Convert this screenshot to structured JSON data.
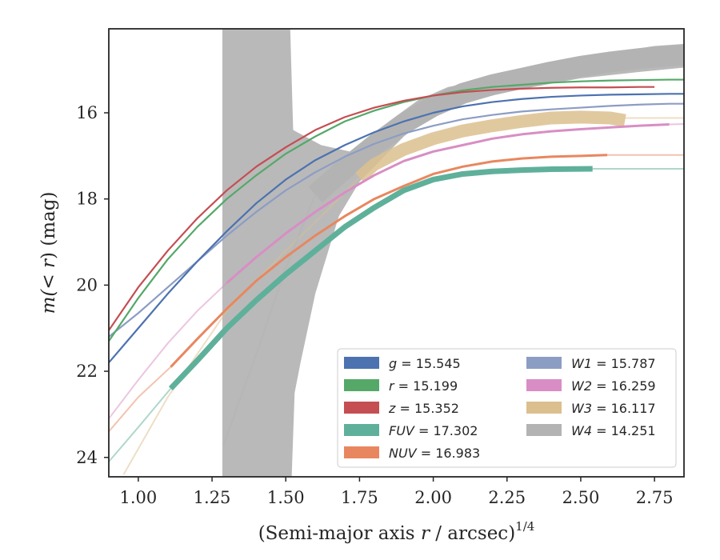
{
  "chart_data": {
    "type": "line",
    "xlabel_main": "(Semi-major axis ",
    "xlabel_var": "r",
    "xlabel_rest": " / arcsec)",
    "xlabel_sup": "1/4",
    "ylabel_main": "m(",
    "ylabel_var": "< r",
    "ylabel_rest": ") (mag)",
    "xlim": [
      0.9,
      2.85
    ],
    "ylim": [
      24.45,
      14.05
    ],
    "y_inverted": true,
    "xticks": [
      1.0,
      1.25,
      1.5,
      1.75,
      2.0,
      2.25,
      2.5,
      2.75
    ],
    "xtick_labels": [
      "1.00",
      "1.25",
      "1.50",
      "1.75",
      "2.00",
      "2.25",
      "2.50",
      "2.75"
    ],
    "yticks": [
      16,
      18,
      20,
      22,
      24
    ],
    "ytick_labels": [
      "16",
      "18",
      "20",
      "22",
      "24"
    ],
    "grid": false,
    "legend_position": "bottom-right",
    "series": [
      {
        "name": "g",
        "value": "15.545",
        "color": "#4c72b0",
        "x": [
          0.9,
          1.0,
          1.1,
          1.2,
          1.3,
          1.4,
          1.5,
          1.6,
          1.7,
          1.8,
          1.9,
          2.0,
          2.1,
          2.2,
          2.3,
          2.4,
          2.5,
          2.6,
          2.7,
          2.8,
          2.85
        ],
        "y": [
          21.8,
          21.0,
          20.2,
          19.45,
          18.75,
          18.1,
          17.55,
          17.1,
          16.75,
          16.45,
          16.2,
          16.0,
          15.85,
          15.75,
          15.68,
          15.63,
          15.6,
          15.58,
          15.57,
          15.56,
          15.56
        ],
        "width": 2.2
      },
      {
        "name": "r",
        "value": "15.199",
        "color": "#55a868",
        "x": [
          0.9,
          1.0,
          1.1,
          1.2,
          1.3,
          1.4,
          1.5,
          1.6,
          1.7,
          1.8,
          1.9,
          2.0,
          2.1,
          2.2,
          2.3,
          2.4,
          2.5,
          2.6,
          2.7,
          2.8,
          2.85
        ],
        "y": [
          21.3,
          20.3,
          19.4,
          18.65,
          18.0,
          17.45,
          16.95,
          16.55,
          16.2,
          15.95,
          15.75,
          15.6,
          15.48,
          15.4,
          15.35,
          15.3,
          15.27,
          15.25,
          15.24,
          15.23,
          15.23
        ],
        "width": 2.2
      },
      {
        "name": "z",
        "value": "15.352",
        "color": "#c44e52",
        "x": [
          0.9,
          1.0,
          1.1,
          1.2,
          1.3,
          1.4,
          1.5,
          1.6,
          1.7,
          1.8,
          1.9,
          2.0,
          2.1,
          2.2,
          2.3,
          2.4,
          2.5,
          2.6,
          2.7,
          2.75
        ],
        "y": [
          21.05,
          20.05,
          19.2,
          18.45,
          17.8,
          17.25,
          16.8,
          16.4,
          16.1,
          15.88,
          15.72,
          15.6,
          15.52,
          15.47,
          15.44,
          15.42,
          15.41,
          15.41,
          15.4,
          15.4
        ],
        "width": 2.2
      },
      {
        "name": "FUV",
        "value": "17.302",
        "color": "#5fb09a",
        "x": [
          1.11,
          1.2,
          1.3,
          1.4,
          1.5,
          1.6,
          1.7,
          1.8,
          1.9,
          2.0,
          2.1,
          2.2,
          2.3,
          2.4,
          2.54
        ],
        "y": [
          22.4,
          21.75,
          21.0,
          20.35,
          19.75,
          19.2,
          18.65,
          18.2,
          17.8,
          17.55,
          17.42,
          17.36,
          17.33,
          17.31,
          17.3
        ],
        "width": 7
      },
      {
        "name": "NUV",
        "value": "16.983",
        "color": "#e8875f",
        "x": [
          1.11,
          1.2,
          1.3,
          1.4,
          1.5,
          1.6,
          1.7,
          1.8,
          1.9,
          2.0,
          2.1,
          2.2,
          2.3,
          2.4,
          2.5,
          2.59
        ],
        "y": [
          21.9,
          21.25,
          20.55,
          19.9,
          19.35,
          18.85,
          18.4,
          18.0,
          17.7,
          17.42,
          17.25,
          17.13,
          17.06,
          17.02,
          17.0,
          16.98
        ],
        "width": 3
      },
      {
        "name": "W1",
        "value": "15.787",
        "color": "#8c9dc4",
        "x": [
          0.9,
          1.0,
          1.1,
          1.2,
          1.3,
          1.4,
          1.5,
          1.6,
          1.7,
          1.8,
          1.9,
          2.0,
          2.1,
          2.2,
          2.3,
          2.4,
          2.5,
          2.6,
          2.7,
          2.8,
          2.85
        ],
        "y": [
          21.2,
          20.65,
          20.05,
          19.45,
          18.85,
          18.3,
          17.8,
          17.38,
          17.02,
          16.72,
          16.48,
          16.3,
          16.15,
          16.05,
          15.97,
          15.92,
          15.88,
          15.84,
          15.81,
          15.79,
          15.79
        ],
        "width": 2.2
      },
      {
        "name": "W2",
        "value": "16.259",
        "color": "#d88ec4",
        "x": [
          1.3,
          1.4,
          1.5,
          1.6,
          1.7,
          1.8,
          1.9,
          2.0,
          2.1,
          2.2,
          2.3,
          2.4,
          2.5,
          2.6,
          2.7,
          2.8
        ],
        "y": [
          19.95,
          19.35,
          18.8,
          18.3,
          17.85,
          17.45,
          17.12,
          16.9,
          16.75,
          16.6,
          16.5,
          16.43,
          16.38,
          16.34,
          16.3,
          16.27
        ],
        "width": 3
      },
      {
        "name": "W3",
        "value": "16.117",
        "color": "#dcbf8e",
        "x": [
          1.75,
          1.8,
          1.9,
          2.0,
          2.1,
          2.2,
          2.3,
          2.4,
          2.5,
          2.6,
          2.65
        ],
        "y": [
          17.5,
          17.2,
          16.85,
          16.6,
          16.42,
          16.3,
          16.2,
          16.12,
          16.1,
          16.12,
          16.18
        ],
        "width": 16
      },
      {
        "name": "W4",
        "value": "14.251",
        "color": "#b3b3b3",
        "x": [
          1.6,
          1.7,
          1.8,
          1.9,
          2.0,
          2.1,
          2.2,
          2.3,
          2.4,
          2.5,
          2.6,
          2.7,
          2.8,
          2.85
        ],
        "y": [
          17.9,
          17.3,
          16.75,
          16.25,
          15.85,
          15.55,
          15.35,
          15.2,
          15.05,
          14.92,
          14.82,
          14.74,
          14.68,
          14.66
        ],
        "width": 26
      }
    ]
  }
}
